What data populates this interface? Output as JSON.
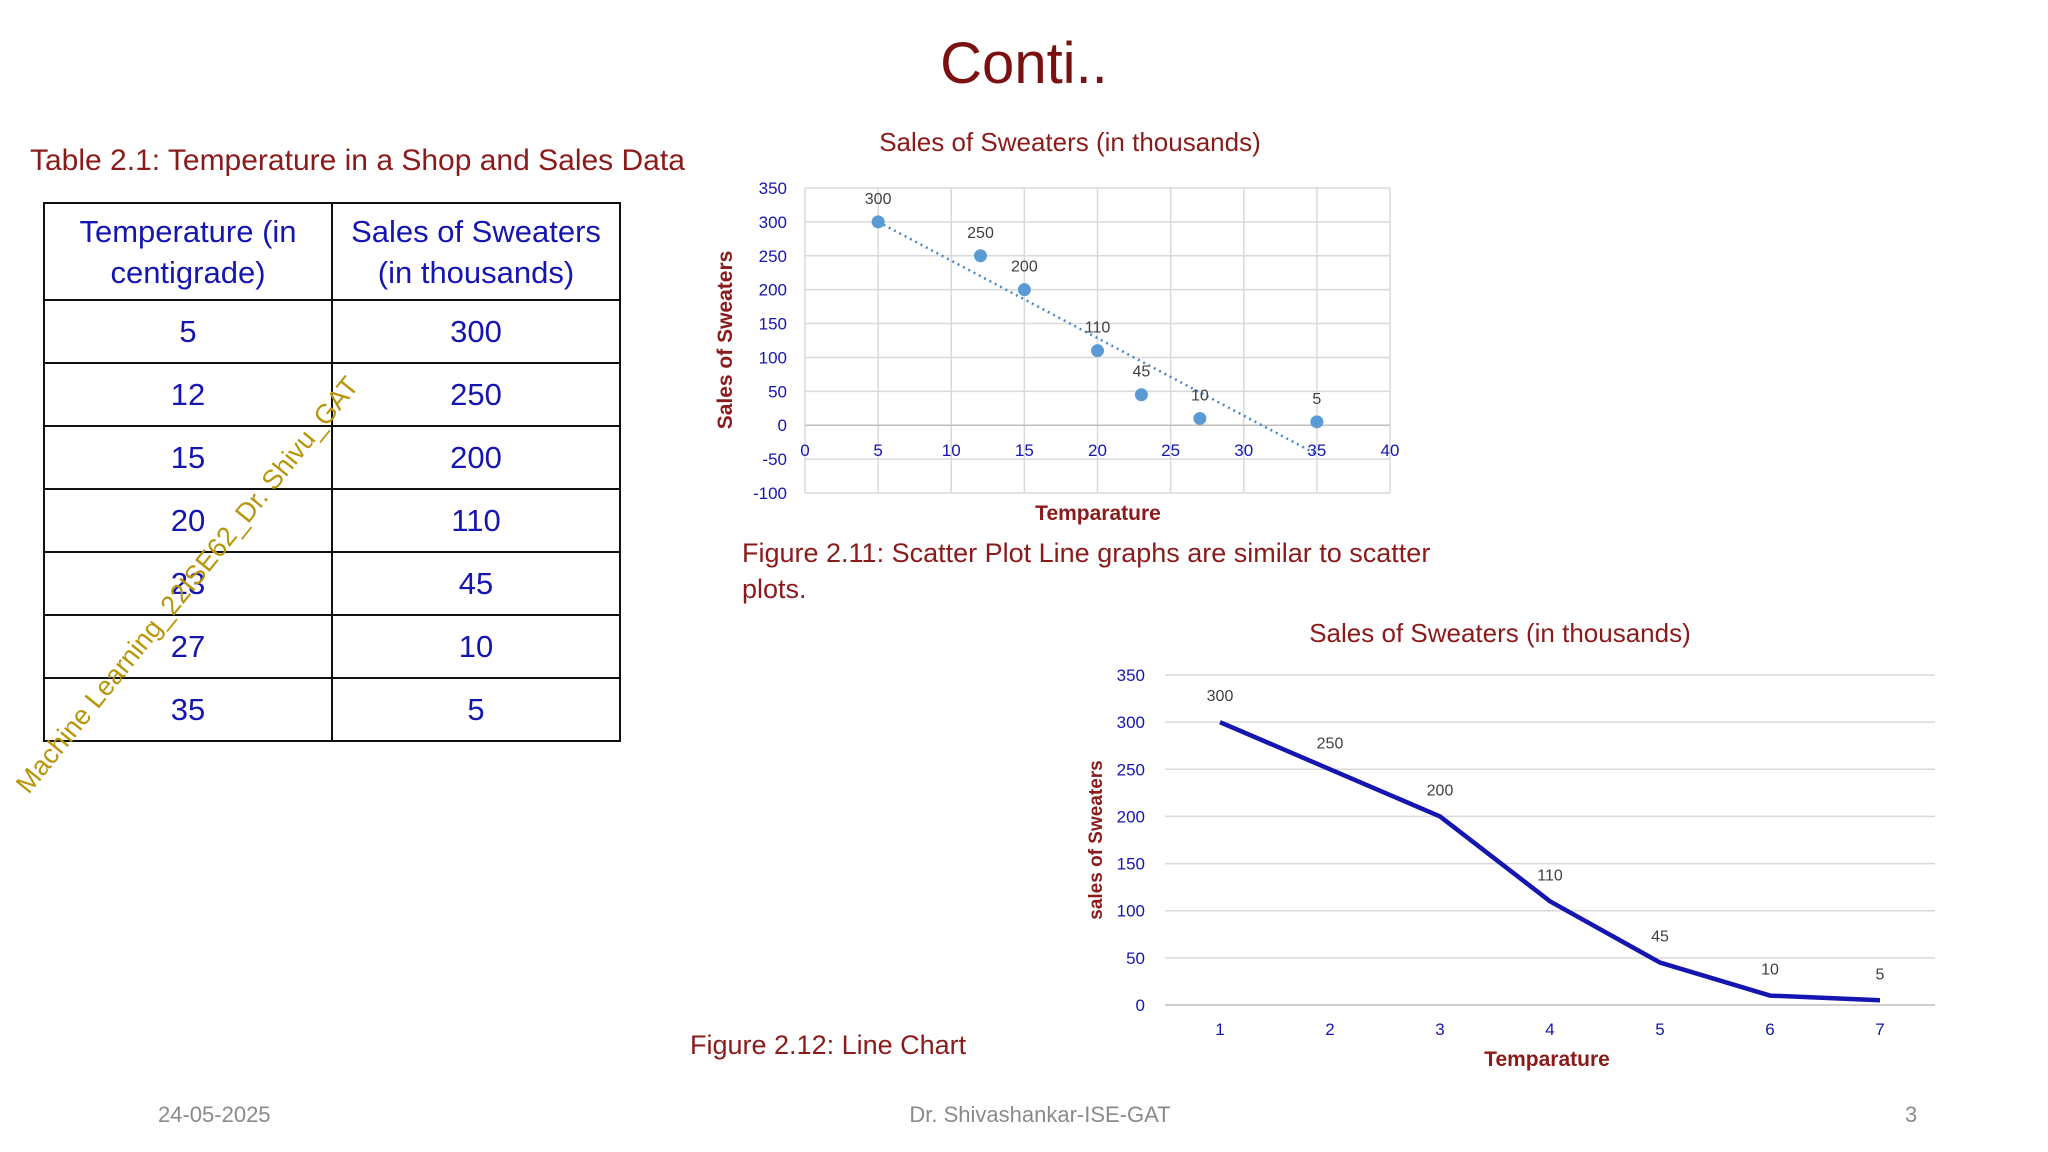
{
  "slide": {
    "title": "Conti..",
    "table_caption": "Table 2.1: Temperature in a Shop and Sales Data",
    "table": {
      "headers": [
        "Temperature (in centigrade)",
        "Sales of Sweaters (in thousands)"
      ],
      "rows": [
        [
          "5",
          "300"
        ],
        [
          "12",
          "250"
        ],
        [
          "15",
          "200"
        ],
        [
          "20",
          "110"
        ],
        [
          "23",
          "45"
        ],
        [
          "27",
          "10"
        ],
        [
          "35",
          "5"
        ]
      ]
    },
    "figure1_caption": "Figure 2.11: Scatter Plot  Line graphs are similar to scatter plots.",
    "figure2_caption": "Figure 2.12: Line Chart",
    "watermark": "Machine Learning_22ISE62_Dr. Shivu_GAT",
    "footer": {
      "date": "24-05-2025",
      "author": "Dr. Shivashankar-ISE-GAT",
      "page": "3"
    }
  },
  "chart_data": [
    {
      "type": "scatter",
      "title": "Sales of Sweaters (in thousands)",
      "xlabel": "Temparature",
      "ylabel": "Sales of Sweaters",
      "x": [
        5,
        12,
        15,
        20,
        23,
        27,
        35
      ],
      "y": [
        300,
        250,
        200,
        110,
        45,
        10,
        5
      ],
      "data_labels": [
        "300",
        "250",
        "200",
        "110",
        "45",
        "10",
        "5"
      ],
      "xlim": [
        0,
        40
      ],
      "ylim": [
        -100,
        350
      ],
      "x_ticks": [
        "0",
        "5",
        "10",
        "15",
        "20",
        "25",
        "30",
        "35",
        "40"
      ],
      "y_ticks": [
        "-100",
        "-50",
        "0",
        "50",
        "100",
        "150",
        "200",
        "250",
        "300",
        "350"
      ],
      "trendline": {
        "style": "dotted linear",
        "from": [
          5,
          300
        ],
        "to": [
          35,
          -43
        ]
      },
      "grid": true,
      "colors": {
        "points": "#5b9bd5",
        "trendline": "#4a86c5",
        "title": "#8b1a1a",
        "ticks": "#1515b0"
      }
    },
    {
      "type": "line",
      "title": "Sales of Sweaters (in thousands)",
      "xlabel": "Temparature",
      "ylabel": "sales of Sweaters",
      "categories": [
        "1",
        "2",
        "3",
        "4",
        "5",
        "6",
        "7"
      ],
      "values": [
        300,
        250,
        200,
        110,
        45,
        10,
        5
      ],
      "data_labels": [
        "300",
        "250",
        "200",
        "110",
        "45",
        "10",
        "5"
      ],
      "ylim": [
        0,
        350
      ],
      "y_ticks": [
        "0",
        "50",
        "100",
        "150",
        "200",
        "250",
        "300",
        "350"
      ],
      "grid": true,
      "colors": {
        "line": "#1515b0",
        "title": "#8b1a1a",
        "ticks": "#1515b0"
      }
    }
  ]
}
